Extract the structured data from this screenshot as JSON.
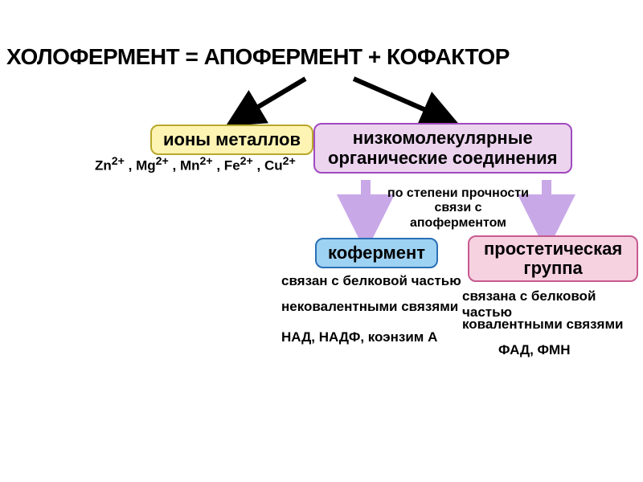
{
  "title": "ХОЛОФЕРМЕНТ = АПОФЕРМЕНТ + КОФАКТОР",
  "metal_ions": {
    "label": "ионы металлов",
    "examples_html": "Zn<sup>2+</sup> , Mg<sup>2+</sup> , Mn<sup>2+</sup> , Fe<sup>2+</sup> , Cu<sup>2+</sup>",
    "box_fill": "#fdf4b3",
    "box_border": "#b8a82a",
    "font_size": 22
  },
  "organic": {
    "label_line1": "низкомолекулярные",
    "label_line2": "органические соединения",
    "box_fill": "#ecd4ef",
    "box_border": "#a04abf",
    "font_size": 22,
    "sub_label_line1": "по степени прочности связи с",
    "sub_label_line2": "апоферментом",
    "sub_fontsize": 16
  },
  "coenzyme": {
    "label": "кофермент",
    "box_fill": "#9ed2f3",
    "box_border": "#2a6fb5",
    "font_size": 22,
    "desc1": "связан с белковой частью",
    "desc2": "нековалентными связями",
    "desc3": "НАД, НАДФ, коэнзим А",
    "desc_fontsize": 17
  },
  "prosthetic": {
    "label_line1": "простетическая",
    "label_line2": "группа",
    "box_fill": "#f6d1e0",
    "box_border": "#c65a8f",
    "font_size": 22,
    "desc1": "связана с белковой частью",
    "desc2": "ковалентными связями",
    "desc3": "ФАД, ФМН",
    "desc_fontsize": 17
  },
  "arrows": {
    "black_stroke": "#000000",
    "purple_stroke": "#c9a8e8",
    "thick": 6,
    "thin": 10
  }
}
